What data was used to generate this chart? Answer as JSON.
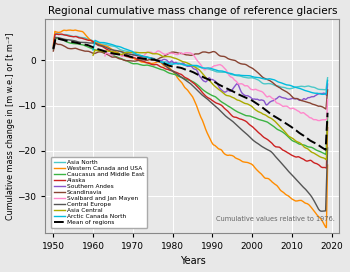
{
  "title": "Regional cumulative mass change of reference glaciers",
  "xlabel": "Years",
  "ylabel": "Cumulative mass change in [m w.e.] or [t m⁻²]",
  "annotation": "Cumulative values relative to 1976.",
  "xlim": [
    1948,
    2022
  ],
  "ylim": [
    -38,
    9
  ],
  "yticks": [
    0,
    -10,
    -20,
    -30
  ],
  "xticks": [
    1950,
    1960,
    1970,
    1980,
    1990,
    2000,
    2010,
    2020
  ],
  "background_color": "#e8e8e8",
  "regions": [
    {
      "name": "Asia North",
      "color": "#4dc8c8",
      "lw": 1.0
    },
    {
      "name": "Western Canada and USA",
      "color": "#ff8c00",
      "lw": 1.0
    },
    {
      "name": "Caucasus and Middle East",
      "color": "#3cb343",
      "lw": 1.0
    },
    {
      "name": "Alaska",
      "color": "#cc2222",
      "lw": 1.0
    },
    {
      "name": "Southern Andes",
      "color": "#8855cc",
      "lw": 1.0
    },
    {
      "name": "Scandinavia",
      "color": "#884433",
      "lw": 1.0
    },
    {
      "name": "Svalbard and Jan Mayen",
      "color": "#ff88cc",
      "lw": 1.0
    },
    {
      "name": "Central Europe",
      "color": "#555555",
      "lw": 1.0
    },
    {
      "name": "Asia Central",
      "color": "#aaaa00",
      "lw": 1.0
    },
    {
      "name": "Arctic Canada North",
      "color": "#00bbdd",
      "lw": 1.0
    },
    {
      "name": "Mean of regions",
      "color": "#000000",
      "lw": 1.4,
      "dashes": [
        5,
        2
      ]
    }
  ]
}
